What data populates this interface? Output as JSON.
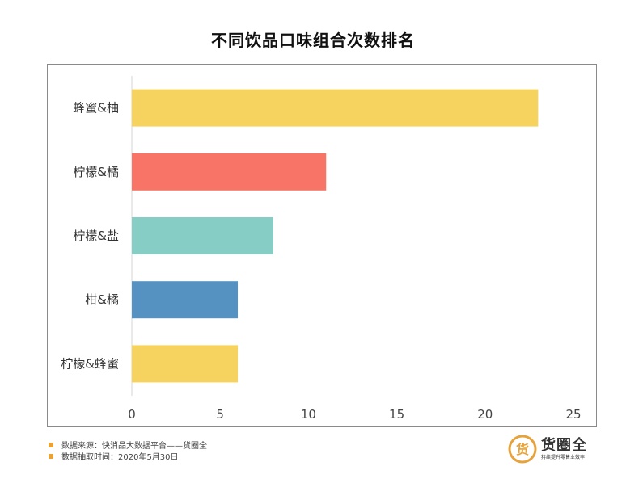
{
  "chart_data": {
    "type": "bar",
    "orientation": "horizontal",
    "title": "不同饮品口味组合次数排名",
    "categories": [
      "蜂蜜&柚",
      "柠檬&橘",
      "柠檬&盐",
      "柑&橘",
      "柠檬&蜂蜜"
    ],
    "values": [
      23,
      11,
      8,
      6,
      6
    ],
    "colors": [
      "#f6d25e",
      "#f77466",
      "#85cdc5",
      "#5592c1",
      "#f6d25e"
    ],
    "xlim": [
      0,
      25
    ],
    "xticks": [
      0,
      5,
      10,
      15,
      20,
      25
    ],
    "xlabel": "",
    "ylabel": "",
    "grid": false
  },
  "footer": {
    "source": "数据来源：快消品大数据平台——货圈全",
    "period": "数据抽取时间：2020年5月30日"
  },
  "brand": {
    "logo_char": "货",
    "name": "货圈全",
    "slogan": "持续提升零售业效率",
    "color": "#e8a23a"
  }
}
